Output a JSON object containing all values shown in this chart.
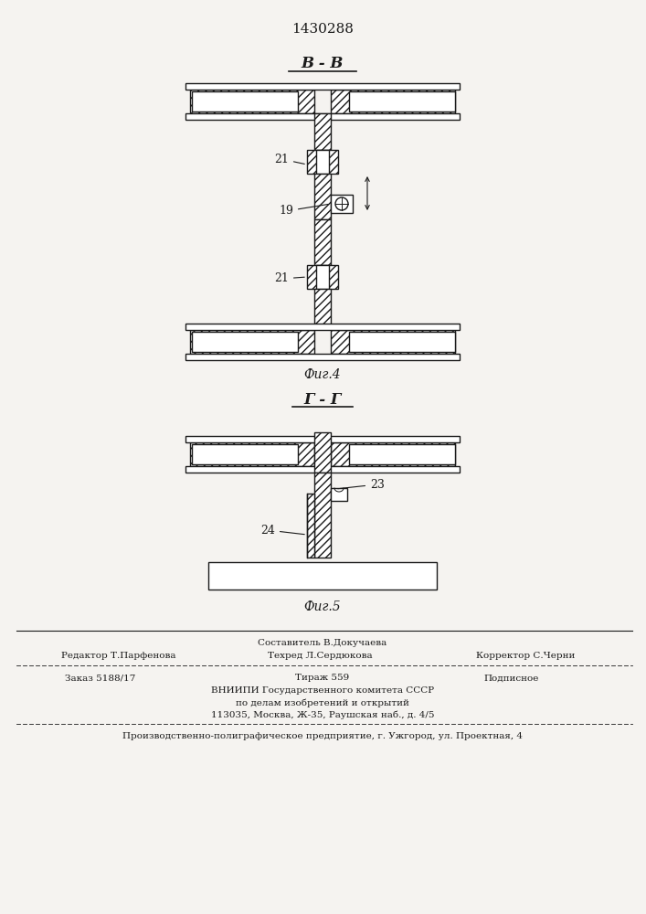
{
  "patent_number": "1430288",
  "bg_color": "#f5f3f0",
  "line_color": "#1a1a1a",
  "fig4_label": "Фиг.4",
  "fig5_label": "Фиг.5",
  "section_label_fig4": "В - В",
  "section_label_fig5": "Г - Г",
  "label_19": "19",
  "label_21a": "21",
  "label_21b": "21",
  "label_23": "23",
  "label_24": "24",
  "footer_col1_row1": "Составитель В.Докучаева",
  "footer_col1_row2": "Редактор Т.Парфенова",
  "footer_col2_row2": "Техред Л.Сердюкова",
  "footer_col3_row2": "Корректор С.Черни",
  "footer_order": "Заказ 5188/17",
  "footer_tirazh": "Тираж 559",
  "footer_podpisnoe": "Подписное",
  "footer_vniip1": "ВНИИПИ Государственного комитета СССР",
  "footer_vniip2": "по делам изобретений и открытий",
  "footer_vniip3": "113035, Москва, Ж-35, Раушская наб., д. 4/5",
  "footer_prod": "Производственно-полиграфическое предприятие, г. Ужгород, ул. Проектная, 4"
}
